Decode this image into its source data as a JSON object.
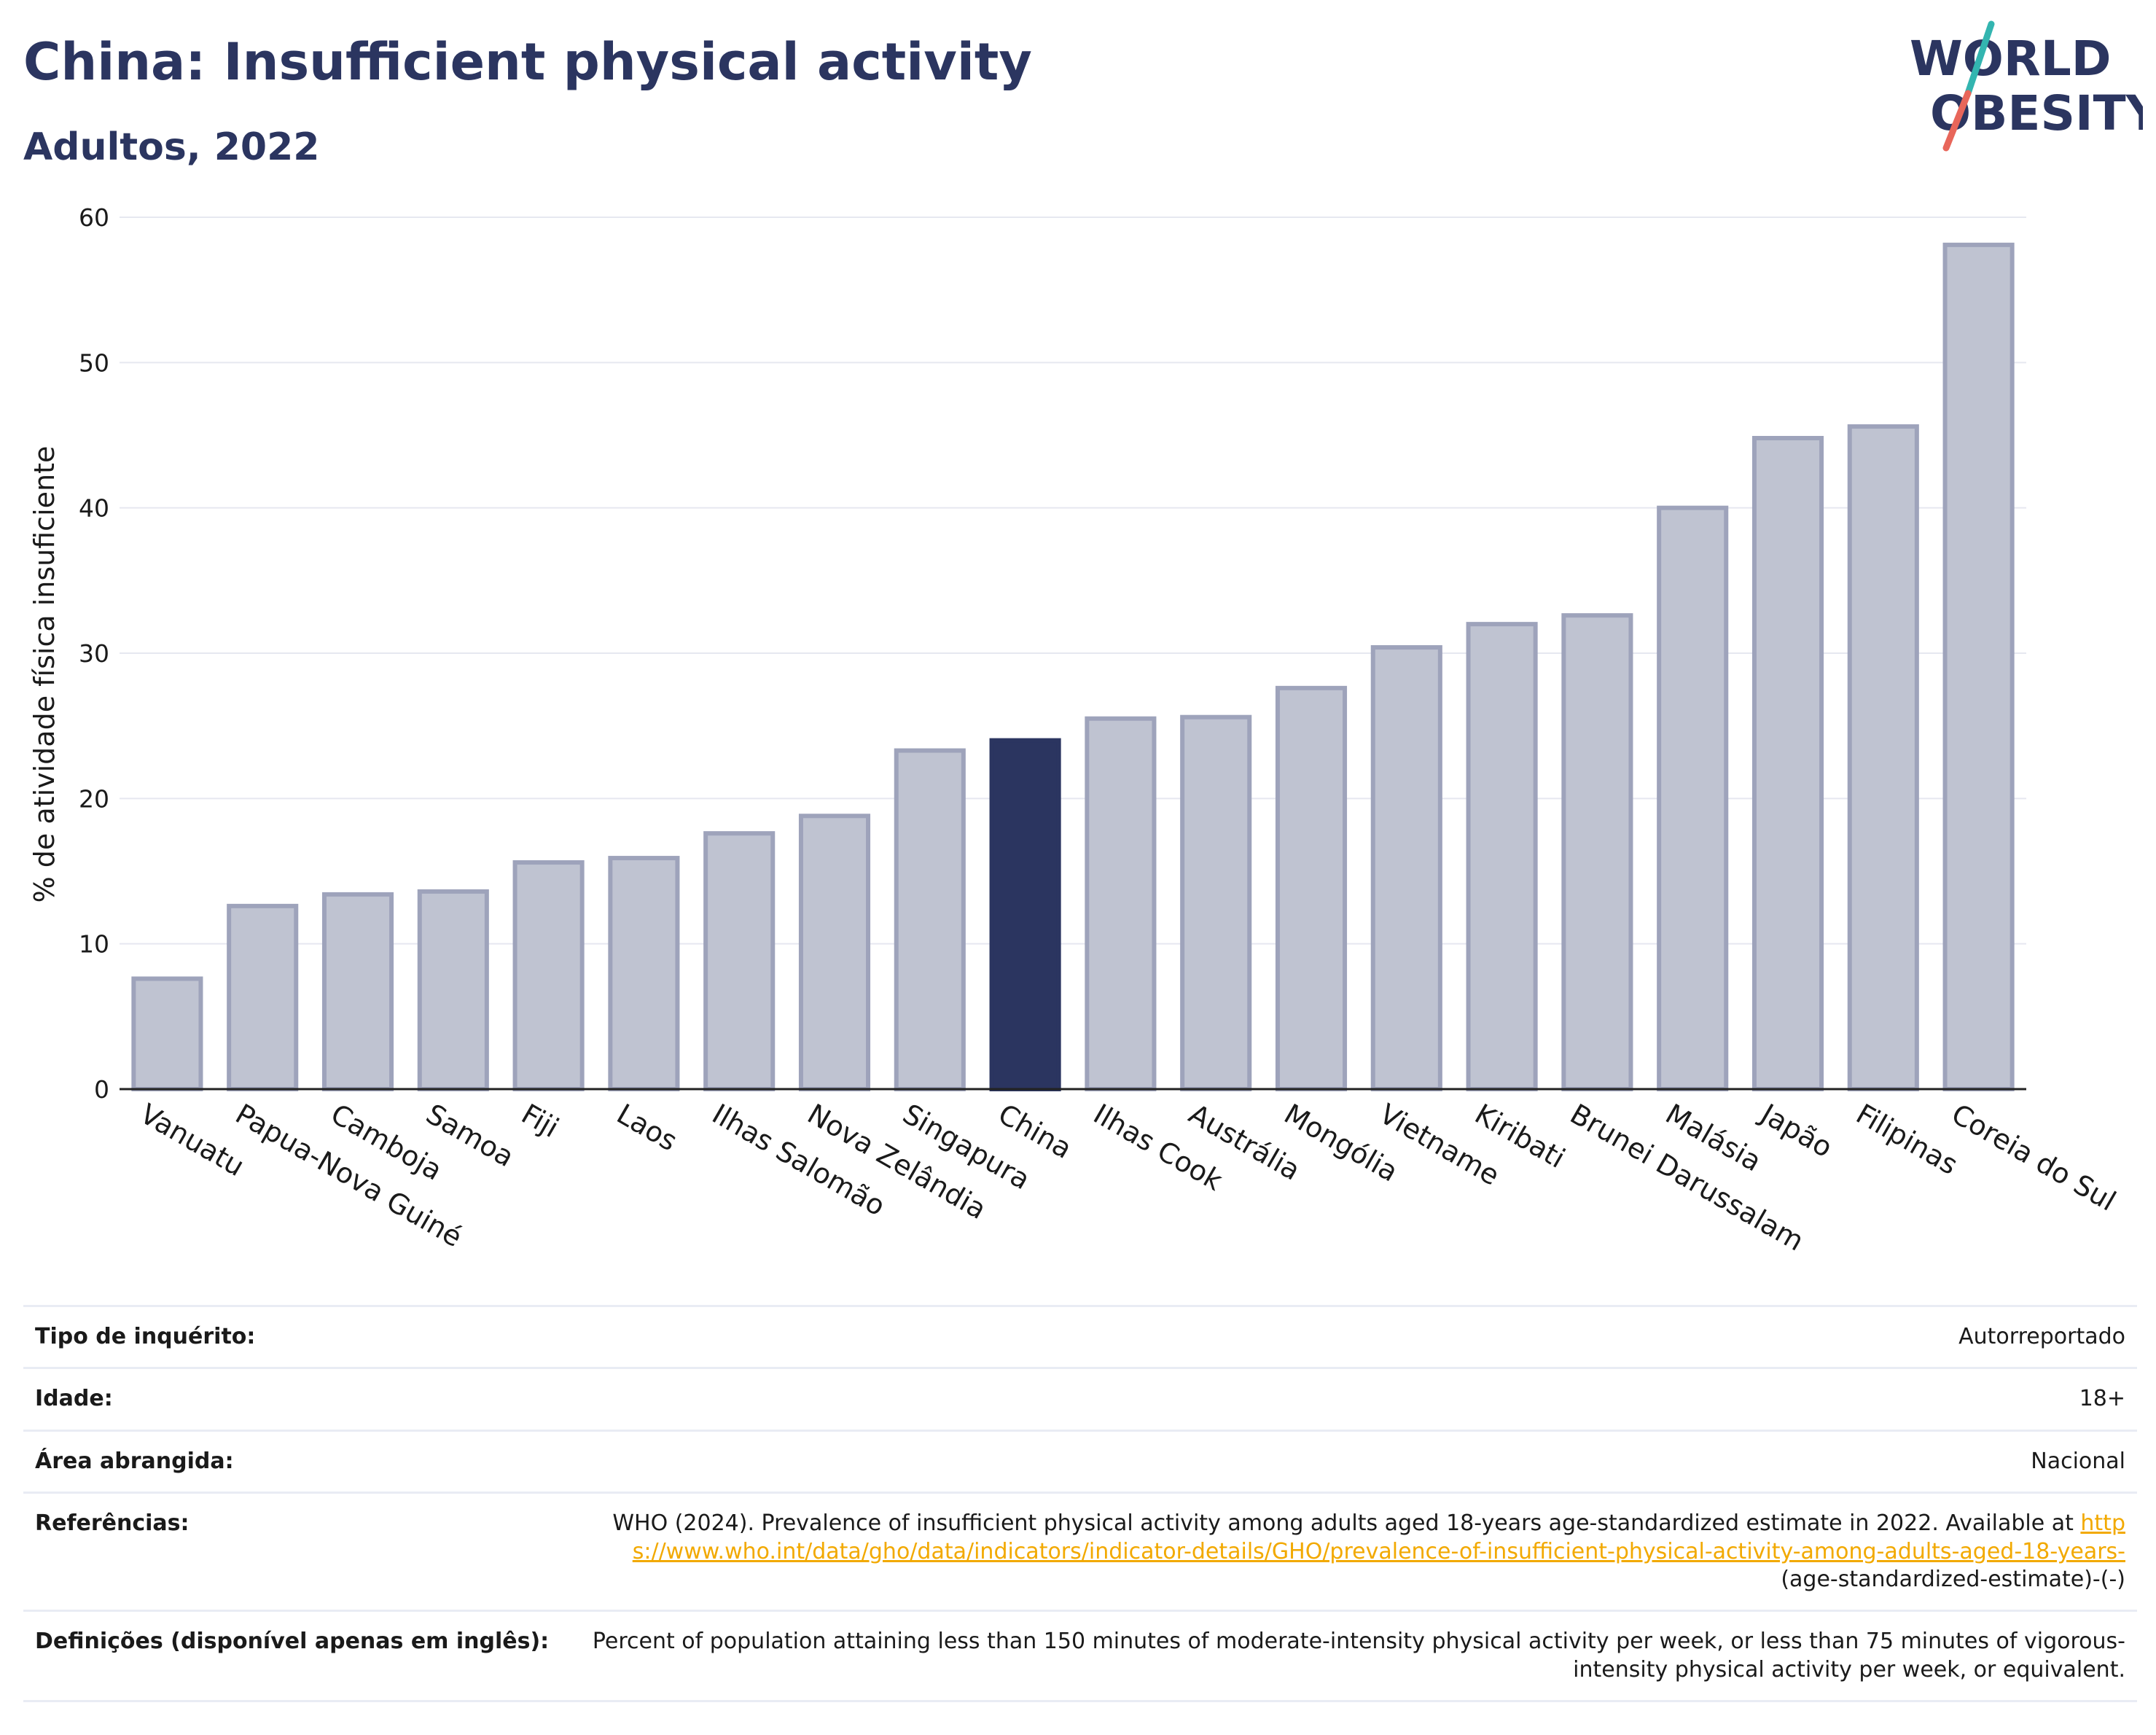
{
  "header": {
    "title": "China: Insufficient physical activity",
    "subtitle": "Adultos, 2022"
  },
  "logo": {
    "line1": "WORLD",
    "line2": "OBESITY",
    "colors": {
      "text": "#2b3560",
      "slash_top": "#33b5b0",
      "slash_bottom": "#e8665a"
    }
  },
  "chart_data": {
    "type": "bar",
    "title": "China: Insufficient physical activity",
    "subtitle": "Adultos, 2022",
    "ylabel": "% de atividade física insuficiente",
    "xlabel": "",
    "ylim": [
      0,
      60
    ],
    "yticks": [
      0,
      10,
      20,
      30,
      40,
      50,
      60
    ],
    "grid": true,
    "highlight": "China",
    "categories": [
      "Vanuatu",
      "Papua-Nova Guiné",
      "Camboja",
      "Samoa",
      "Fiji",
      "Laos",
      "Ilhas Salomão",
      "Nova Zelândia",
      "Singapura",
      "China",
      "Ilhas Cook",
      "Austrália",
      "Mongólia",
      "Vietname",
      "Kiribati",
      "Brunei Darussalam",
      "Malásia",
      "Japão",
      "Filipinas",
      "Coreia do Sul"
    ],
    "values": [
      7.6,
      12.6,
      13.4,
      13.6,
      15.6,
      15.9,
      17.6,
      18.8,
      23.3,
      24.0,
      25.5,
      25.6,
      27.6,
      30.4,
      32.0,
      32.6,
      40.0,
      44.8,
      45.6,
      58.1
    ],
    "colors": {
      "bar_fill": "#bfc3d1",
      "bar_stroke": "#9ea3bb",
      "highlight": "#2b3560",
      "grid": "#e6e8f0"
    }
  },
  "info": {
    "rows": [
      {
        "label": "Tipo de inquérito:",
        "value": "Autorreportado"
      },
      {
        "label": "Idade:",
        "value": "18+"
      },
      {
        "label": "Área abrangida:",
        "value": "Nacional"
      }
    ],
    "references": {
      "label": "Referências:",
      "text": "WHO (2024). Prevalence of insufficient physical activity among adults aged 18-years age-standardized estimate in 2022. Available at ",
      "link": "https://www.who.int/data/gho/data/indicators/indicator-details/GHO/prevalence-of-insufficient-physical-activity-among-adults-aged-18-years-",
      "suffix": "(age-standardized-estimate)-(-)"
    },
    "definitions": {
      "label": "Definições (disponível apenas em inglês):",
      "text": "Percent of population attaining less than 150 minutes of moderate-intensity physical activity per week, or less than 75 minutes of vigorous-intensity physical activity per week, or equivalent."
    }
  }
}
